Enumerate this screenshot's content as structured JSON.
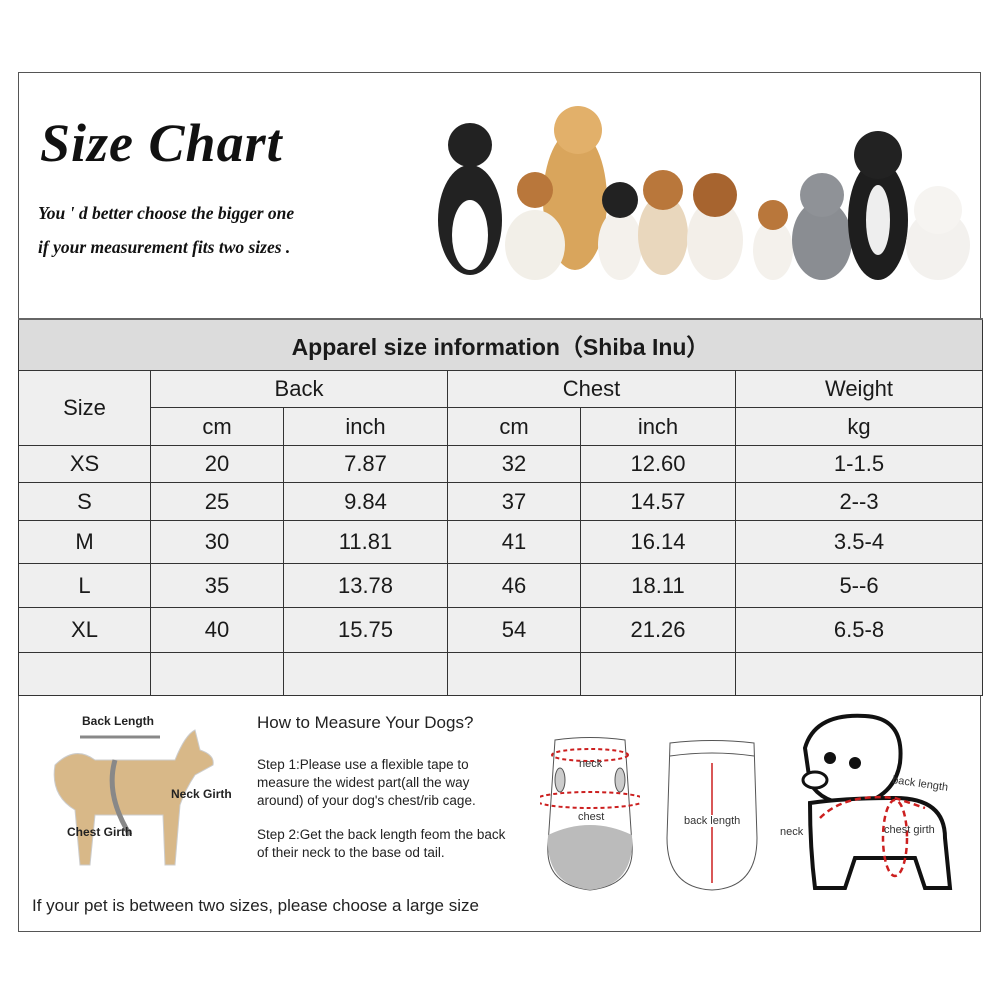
{
  "header": {
    "title": "Size Chart",
    "subtitle_line1": "You ' d better choose the bigger one",
    "subtitle_line2": "if your measurement fits two sizes ."
  },
  "table": {
    "caption": "Apparel  size  information（Shiba Inu）",
    "size_header": "Size",
    "groups": [
      "Back",
      "Chest",
      "Weight"
    ],
    "units": [
      "cm",
      "inch",
      "cm",
      "inch",
      "kg"
    ],
    "rows": [
      [
        "XS",
        "20",
        "7.87",
        "32",
        "12.60",
        "1-1.5"
      ],
      [
        "S",
        "25",
        "9.84",
        "37",
        "14.57",
        "2--3"
      ],
      [
        "M",
        "30",
        "11.81",
        "41",
        "16.14",
        "3.5-4"
      ],
      [
        "L",
        "35",
        "13.78",
        "46",
        "18.11",
        "5--6"
      ],
      [
        "XL",
        "40",
        "15.75",
        "54",
        "21.26",
        "6.5-8"
      ],
      [
        "",
        "",
        "",
        "",
        "",
        ""
      ]
    ]
  },
  "measure": {
    "dog_labels": {
      "back": "Back Length",
      "neck": "Neck Girth",
      "chest": "Chest Girth"
    },
    "heading": "How to Measure Your Dogs?",
    "step1": "Step 1:Please use a flexible tape to measure the widest part(all the way around) of your dog's chest/rib cage.",
    "step2": "Step 2:Get the back length feom the back of their neck to the base od tail.",
    "note": "If your pet is between two sizes, please choose a large size",
    "garment_labels": {
      "neck": "neck",
      "chest": "chest",
      "back_length": "back length"
    },
    "puppy_labels": {
      "back_length": "back length",
      "neck": "neck",
      "chest_girth": "chest girth"
    }
  },
  "colors": {
    "title_row": "#dcdcdc",
    "cell": "#efefef",
    "measure_line": "#cc1f1f"
  }
}
